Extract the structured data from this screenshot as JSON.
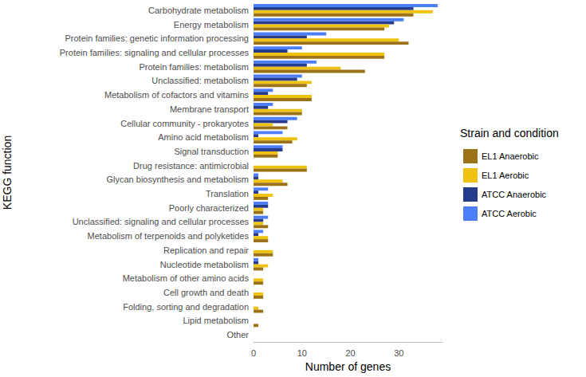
{
  "chart_data": {
    "type": "bar",
    "orientation": "horizontal",
    "categories": [
      "Carbohydrate metabolism",
      "Energy metabolism",
      "Protein families: genetic information processing",
      "Protein families: signaling and cellular processes",
      "Protein families: metabolism",
      "Unclassified: metabolism",
      "Metabolism of cofactors and vitamins",
      "Membrane transport",
      "Cellular community - prokaryotes",
      "Amino acid metabolism",
      "Signal transduction",
      "Drug resistance: antimicrobial",
      "Glycan biosynthesis and metabolism",
      "Translation",
      "Poorly characterized",
      "Unclassified: signaling and cellular processes",
      "Metabolism of terpenoids and polyketides",
      "Replication and repair",
      "Nucleotide metabolism",
      "Metabolism of other amino acids",
      "Cell growth and death",
      "Folding, sorting and degradation",
      "Lipid metabolism",
      "Other"
    ],
    "series": [
      {
        "name": "EL1 Anaerobic",
        "color": "#9c7218",
        "values": [
          33,
          27,
          32,
          27,
          23,
          11,
          12,
          10,
          7,
          8,
          5,
          11,
          7,
          3,
          2,
          3,
          3,
          4,
          2,
          2,
          2,
          2,
          1,
          0
        ]
      },
      {
        "name": "EL1 Aerobic",
        "color": "#efc20f",
        "values": [
          37,
          28,
          30,
          27,
          18,
          12,
          12,
          10,
          4,
          9,
          5,
          11,
          6,
          4,
          2,
          2,
          3,
          4,
          3,
          2,
          2,
          1,
          0,
          0
        ]
      },
      {
        "name": "ATCC Anaerobic",
        "color": "#253b8c",
        "values": [
          33,
          29,
          11,
          7,
          11,
          9,
          3,
          3,
          7,
          1,
          6,
          0,
          1,
          1,
          3,
          2,
          1,
          0,
          1,
          0,
          0,
          0,
          0,
          0
        ]
      },
      {
        "name": "ATCC Aerobic",
        "color": "#4c7dfa",
        "values": [
          38,
          31,
          15,
          10,
          13,
          10,
          4,
          4,
          9,
          6,
          6,
          0,
          1,
          3,
          3,
          3,
          2,
          0,
          1,
          0,
          0,
          0,
          0,
          0
        ]
      }
    ],
    "xlabel": "Number of genes",
    "ylabel": "KEGG function",
    "legend_title": "Strain and condition",
    "legend": "right",
    "xlim": [
      0,
      39
    ],
    "xticks": [
      0,
      10,
      20,
      30
    ],
    "grid": false
  }
}
